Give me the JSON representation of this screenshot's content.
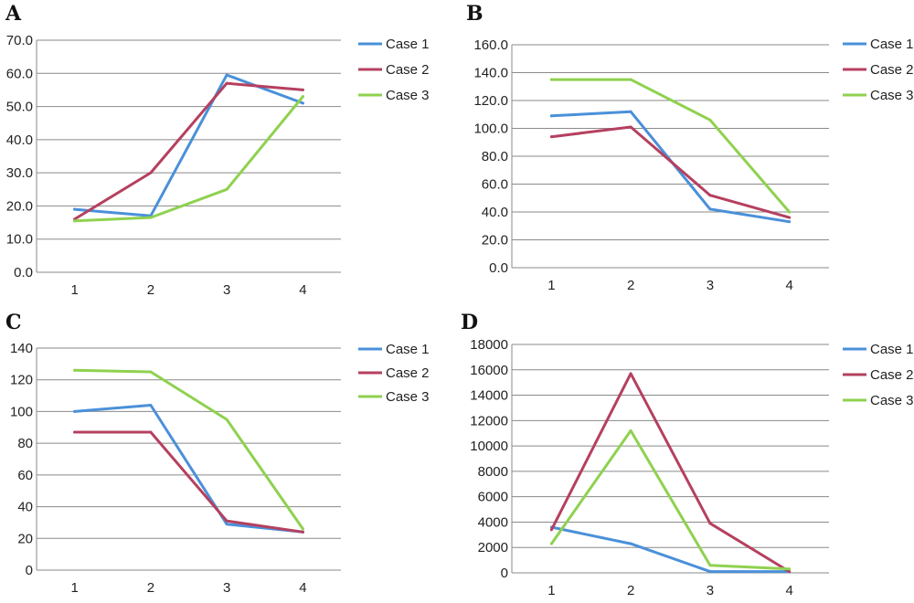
{
  "chart_data": [
    {
      "panel_label": "A",
      "type": "line",
      "title": "",
      "xlabel": "",
      "ylabel": "",
      "x": [
        1,
        2,
        3,
        4
      ],
      "ylim": [
        0,
        70
      ],
      "y_ticks": [
        "0.0",
        "10.0",
        "20.0",
        "30.0",
        "40.0",
        "50.0",
        "60.0",
        "70.0"
      ],
      "grid": true,
      "legend": "right",
      "series": [
        {
          "name": "Case 1",
          "color": "#4a90d9",
          "values": [
            19,
            17,
            59.5,
            51
          ]
        },
        {
          "name": "Case 2",
          "color": "#b5405f",
          "values": [
            16,
            30,
            57,
            55
          ]
        },
        {
          "name": "Case 3",
          "color": "#8fd14f",
          "values": [
            15.5,
            16.5,
            25,
            53
          ]
        }
      ]
    },
    {
      "panel_label": "B",
      "type": "line",
      "title": "",
      "xlabel": "",
      "ylabel": "",
      "x": [
        1,
        2,
        3,
        4
      ],
      "ylim": [
        0,
        160
      ],
      "y_ticks": [
        "0.0",
        "20.0",
        "40.0",
        "60.0",
        "80.0",
        "100.0",
        "120.0",
        "140.0",
        "160.0"
      ],
      "grid": true,
      "legend": "right",
      "series": [
        {
          "name": "Case 1",
          "color": "#4a90d9",
          "values": [
            109,
            112,
            42,
            33
          ]
        },
        {
          "name": "Case 2",
          "color": "#b5405f",
          "values": [
            94,
            101,
            52,
            36
          ]
        },
        {
          "name": "Case 3",
          "color": "#8fd14f",
          "values": [
            135,
            135,
            106,
            40
          ]
        }
      ]
    },
    {
      "panel_label": "C",
      "type": "line",
      "title": "",
      "xlabel": "",
      "ylabel": "",
      "x": [
        1,
        2,
        3,
        4
      ],
      "ylim": [
        0,
        140
      ],
      "y_ticks": [
        "0",
        "20",
        "40",
        "60",
        "80",
        "100",
        "120",
        "140"
      ],
      "grid": true,
      "legend": "right",
      "series": [
        {
          "name": "Case 1",
          "color": "#4a90d9",
          "values": [
            100,
            104,
            29,
            24
          ]
        },
        {
          "name": "Case 2",
          "color": "#b5405f",
          "values": [
            87,
            87,
            31,
            24
          ]
        },
        {
          "name": "Case 3",
          "color": "#8fd14f",
          "values": [
            126,
            125,
            95,
            26
          ]
        }
      ]
    },
    {
      "panel_label": "D",
      "type": "line",
      "title": "",
      "xlabel": "",
      "ylabel": "",
      "x": [
        1,
        2,
        3,
        4
      ],
      "ylim": [
        0,
        18000
      ],
      "y_ticks": [
        "0",
        "2000",
        "4000",
        "6000",
        "8000",
        "10000",
        "12000",
        "14000",
        "16000",
        "18000"
      ],
      "grid": true,
      "legend": "right",
      "series": [
        {
          "name": "Case 1",
          "color": "#4a90d9",
          "values": [
            3600,
            2300,
            100,
            100
          ]
        },
        {
          "name": "Case 2",
          "color": "#b5405f",
          "values": [
            3400,
            15700,
            3900,
            100
          ]
        },
        {
          "name": "Case 3",
          "color": "#8fd14f",
          "values": [
            2300,
            11200,
            600,
            300
          ]
        }
      ]
    }
  ]
}
